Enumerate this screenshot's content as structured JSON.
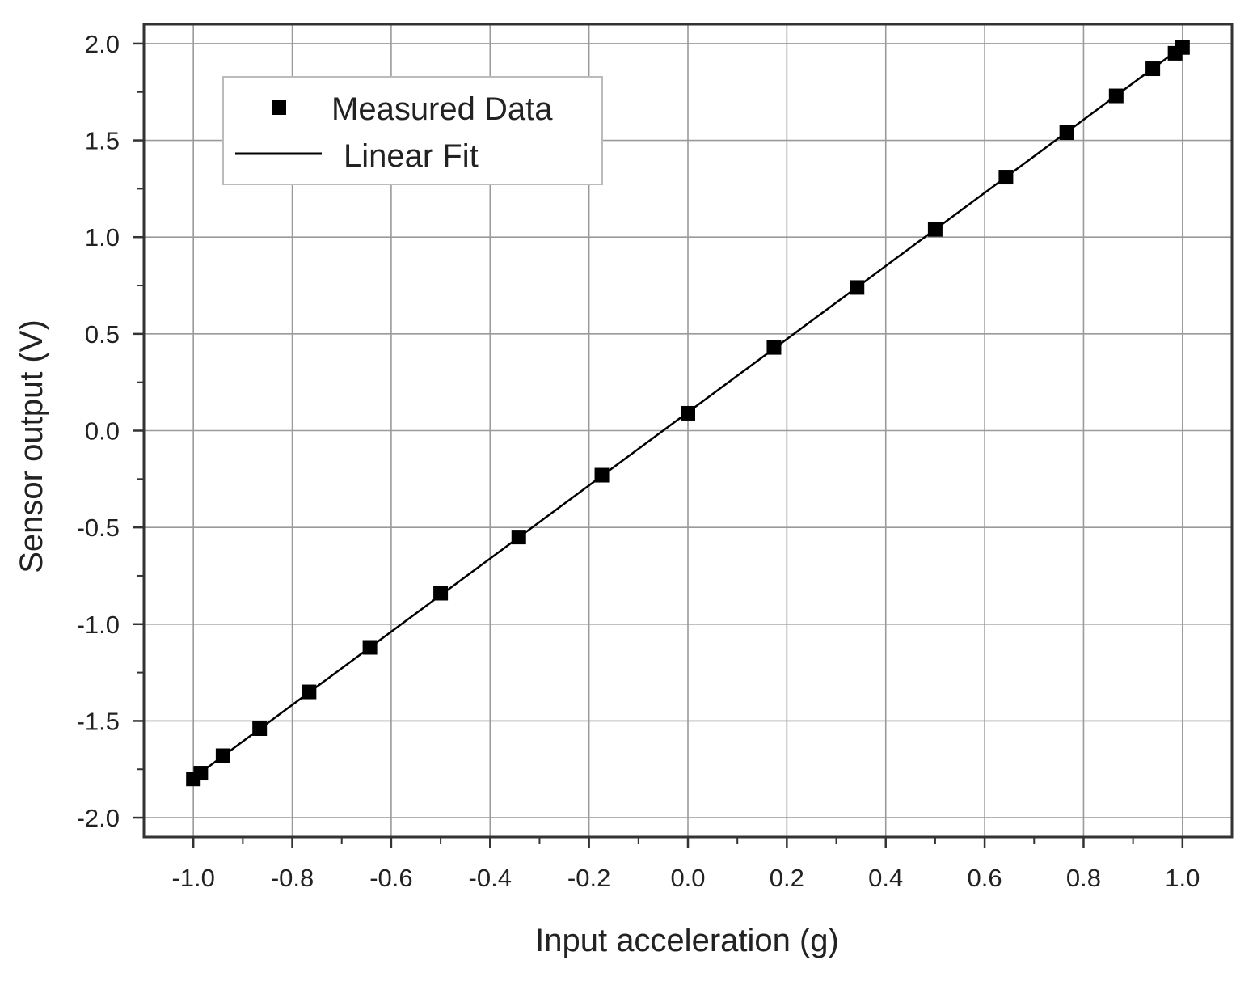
{
  "chart_data": {
    "type": "scatter",
    "title": "",
    "xlabel": "Input acceleration (g)",
    "ylabel": "Sensor output (V)",
    "xlim": [
      -1.1,
      1.1
    ],
    "ylim": [
      -2.1,
      2.1
    ],
    "x_ticks": [
      -1.0,
      -0.8,
      -0.6,
      -0.4,
      -0.2,
      0.0,
      0.2,
      0.4,
      0.6,
      0.8,
      1.0
    ],
    "y_ticks": [
      -2.0,
      -1.5,
      -1.0,
      -0.5,
      0.0,
      0.5,
      1.0,
      1.5,
      2.0
    ],
    "x_tick_labels": [
      "-1.0",
      "-0.8",
      "-0.6",
      "-0.4",
      "-0.2",
      "0.0",
      "0.2",
      "0.4",
      "0.6",
      "0.8",
      "1.0"
    ],
    "y_tick_labels": [
      "-2.0",
      "-1.5",
      "-1.0",
      "-0.5",
      "0.0",
      "0.5",
      "1.0",
      "1.5",
      "2.0"
    ],
    "grid": true,
    "legend_position": "top-left",
    "series": [
      {
        "name": "Measured Data",
        "kind": "points",
        "marker": "square",
        "color": "#000000",
        "x": [
          -1.0,
          -0.985,
          -0.94,
          -0.866,
          -0.766,
          -0.643,
          -0.5,
          -0.342,
          -0.174,
          0.0,
          0.174,
          0.342,
          0.5,
          0.643,
          0.766,
          0.866,
          0.94,
          0.985,
          1.0
        ],
        "y": [
          -1.8,
          -1.77,
          -1.68,
          -1.54,
          -1.35,
          -1.12,
          -0.84,
          -0.55,
          -0.23,
          0.09,
          0.43,
          0.74,
          1.04,
          1.31,
          1.54,
          1.73,
          1.87,
          1.95,
          1.98
        ]
      },
      {
        "name": "Linear Fit",
        "kind": "line",
        "color": "#000000",
        "x": [
          -1.0,
          1.0
        ],
        "y": [
          -1.795,
          1.985
        ]
      }
    ]
  }
}
